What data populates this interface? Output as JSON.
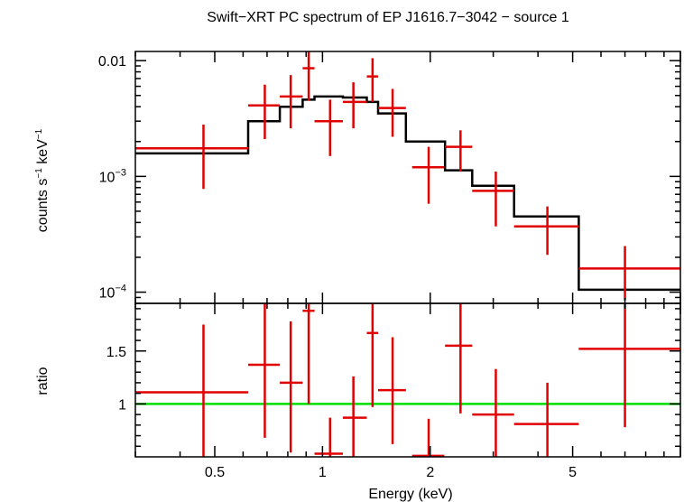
{
  "title": "Swift−XRT PC spectrum of EP J1616.7−3042 − source 1",
  "colors": {
    "data": "#e00000",
    "model": "#000000",
    "unity": "#00e000",
    "frame": "#000000"
  },
  "chart_data": [
    {
      "type": "scatter",
      "panel": "spectrum",
      "xlabel": "",
      "ylabel_parts": {
        "main": "counts s",
        "exp1": "−1",
        "mid": " keV",
        "exp2": "−1"
      },
      "xscale": "log",
      "yscale": "log",
      "xlim": [
        0.3,
        10
      ],
      "ylim": [
        8e-05,
        0.012
      ],
      "yticks": [
        {
          "value": 0.01,
          "base": "0.01",
          "exp": ""
        },
        {
          "value": 0.001,
          "base": "10",
          "exp": "−3"
        },
        {
          "value": 0.0001,
          "base": "10",
          "exp": "−4"
        }
      ],
      "series": [
        {
          "role": "data",
          "points": [
            {
              "x": 0.465,
              "xlo": 0.3,
              "xhi": 0.62,
              "y": 0.00175,
              "ylo": 0.00078,
              "yhi": 0.0028
            },
            {
              "x": 0.69,
              "xlo": 0.62,
              "xhi": 0.76,
              "y": 0.0041,
              "ylo": 0.0021,
              "yhi": 0.0062
            },
            {
              "x": 0.815,
              "xlo": 0.76,
              "xhi": 0.88,
              "y": 0.0049,
              "ylo": 0.0026,
              "yhi": 0.0075
            },
            {
              "x": 0.915,
              "xlo": 0.88,
              "xhi": 0.95,
              "y": 0.0086,
              "ylo": 0.0045,
              "yhi": 0.012
            },
            {
              "x": 1.05,
              "xlo": 0.95,
              "xhi": 1.14,
              "y": 0.003,
              "ylo": 0.0015,
              "yhi": 0.0046
            },
            {
              "x": 1.22,
              "xlo": 1.14,
              "xhi": 1.33,
              "y": 0.0044,
              "ylo": 0.0026,
              "yhi": 0.0065
            },
            {
              "x": 1.38,
              "xlo": 1.33,
              "xhi": 1.43,
              "y": 0.0073,
              "ylo": 0.0044,
              "yhi": 0.0105
            },
            {
              "x": 1.57,
              "xlo": 1.43,
              "xhi": 1.71,
              "y": 0.0039,
              "ylo": 0.0022,
              "yhi": 0.0057
            },
            {
              "x": 1.98,
              "xlo": 1.78,
              "xhi": 2.19,
              "y": 0.0012,
              "ylo": 0.00058,
              "yhi": 0.0018
            },
            {
              "x": 2.43,
              "xlo": 2.2,
              "xhi": 2.62,
              "y": 0.0018,
              "ylo": 0.0011,
              "yhi": 0.0025
            },
            {
              "x": 3.05,
              "xlo": 2.62,
              "xhi": 3.43,
              "y": 0.00075,
              "ylo": 0.00037,
              "yhi": 0.0011
            },
            {
              "x": 4.25,
              "xlo": 3.43,
              "xhi": 5.2,
              "y": 0.00037,
              "ylo": 0.00021,
              "yhi": 0.00055
            },
            {
              "x": 7.0,
              "xlo": 5.2,
              "xhi": 10.0,
              "y": 0.00016,
              "ylo": 8.5e-05,
              "yhi": 0.00025
            }
          ]
        },
        {
          "role": "model",
          "steps": [
            {
              "xlo": 0.3,
              "xhi": 0.62,
              "y": 0.00158
            },
            {
              "xlo": 0.62,
              "xhi": 0.76,
              "y": 0.003
            },
            {
              "xlo": 0.76,
              "xhi": 0.88,
              "y": 0.004
            },
            {
              "xlo": 0.88,
              "xhi": 0.95,
              "y": 0.0046
            },
            {
              "xlo": 0.95,
              "xhi": 1.14,
              "y": 0.0049
            },
            {
              "xlo": 1.14,
              "xhi": 1.33,
              "y": 0.0048
            },
            {
              "xlo": 1.33,
              "xhi": 1.43,
              "y": 0.0044
            },
            {
              "xlo": 1.43,
              "xhi": 1.71,
              "y": 0.0035
            },
            {
              "xlo": 1.71,
              "xhi": 2.2,
              "y": 0.002
            },
            {
              "xlo": 2.2,
              "xhi": 2.62,
              "y": 0.00113
            },
            {
              "xlo": 2.62,
              "xhi": 3.43,
              "y": 0.00083
            },
            {
              "xlo": 3.43,
              "xhi": 5.2,
              "y": 0.00045
            },
            {
              "xlo": 5.2,
              "xhi": 10.0,
              "y": 0.000105
            }
          ]
        }
      ]
    },
    {
      "type": "scatter",
      "panel": "ratio",
      "xlabel": "Energy (keV)",
      "ylabel": "ratio",
      "xscale": "log",
      "xlim": [
        0.3,
        10
      ],
      "ylim": [
        0.5,
        1.95
      ],
      "xticks": [
        {
          "value": 0.5,
          "label": "0.5"
        },
        {
          "value": 1,
          "label": "1"
        },
        {
          "value": 2,
          "label": "2"
        },
        {
          "value": 5,
          "label": "5"
        }
      ],
      "yticks": [
        {
          "value": 1,
          "label": "1"
        },
        {
          "value": 1.5,
          "label": "1.5"
        }
      ],
      "reference_line": 1,
      "series": [
        {
          "role": "data",
          "points": [
            {
              "x": 0.465,
              "xlo": 0.3,
              "xhi": 0.62,
              "y": 1.11,
              "ylo": 0.5,
              "yhi": 1.75
            },
            {
              "x": 0.69,
              "xlo": 0.62,
              "xhi": 0.76,
              "y": 1.37,
              "ylo": 0.68,
              "yhi": 1.95
            },
            {
              "x": 0.815,
              "xlo": 0.76,
              "xhi": 0.88,
              "y": 1.2,
              "ylo": 0.54,
              "yhi": 1.78
            },
            {
              "x": 0.915,
              "xlo": 0.88,
              "xhi": 0.95,
              "y": 1.88,
              "ylo": 1.0,
              "yhi": 1.95
            },
            {
              "x": 1.05,
              "xlo": 0.95,
              "xhi": 1.14,
              "y": 0.53,
              "ylo": 0.5,
              "yhi": 0.87
            },
            {
              "x": 1.22,
              "xlo": 1.14,
              "xhi": 1.33,
              "y": 0.87,
              "ylo": 0.5,
              "yhi": 1.26
            },
            {
              "x": 1.38,
              "xlo": 1.33,
              "xhi": 1.43,
              "y": 1.67,
              "ylo": 0.97,
              "yhi": 1.95
            },
            {
              "x": 1.57,
              "xlo": 1.43,
              "xhi": 1.71,
              "y": 1.13,
              "ylo": 0.62,
              "yhi": 1.63
            },
            {
              "x": 1.98,
              "xlo": 1.78,
              "xhi": 2.19,
              "y": 0.51,
              "ylo": 0.5,
              "yhi": 0.86
            },
            {
              "x": 2.43,
              "xlo": 2.2,
              "xhi": 2.62,
              "y": 1.55,
              "ylo": 0.91,
              "yhi": 1.95
            },
            {
              "x": 3.05,
              "xlo": 2.62,
              "xhi": 3.43,
              "y": 0.9,
              "ylo": 0.5,
              "yhi": 1.33
            },
            {
              "x": 4.25,
              "xlo": 3.43,
              "xhi": 5.2,
              "y": 0.81,
              "ylo": 0.5,
              "yhi": 1.2
            },
            {
              "x": 7.0,
              "xlo": 5.2,
              "xhi": 10.0,
              "y": 1.52,
              "ylo": 0.78,
              "yhi": 1.95
            }
          ]
        }
      ]
    }
  ]
}
